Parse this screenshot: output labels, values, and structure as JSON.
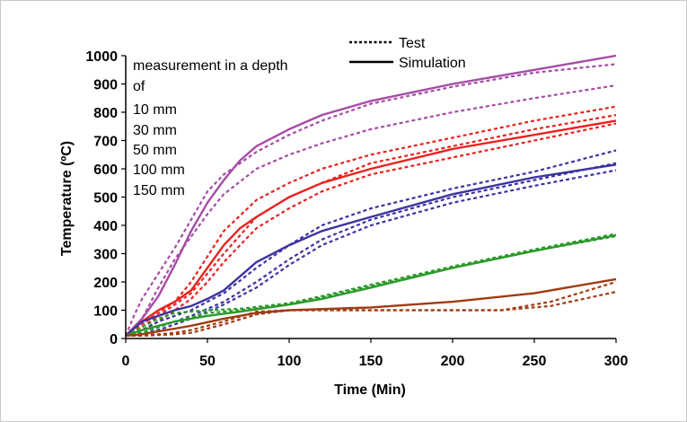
{
  "chart_data": {
    "type": "line",
    "xlabel": "Time (Min)",
    "ylabel": "Temperature (ºC)",
    "xlim": [
      0,
      300
    ],
    "ylim": [
      0,
      1000
    ],
    "xticks": [
      0,
      50,
      100,
      150,
      200,
      250,
      300
    ],
    "yticks": [
      0,
      100,
      200,
      300,
      400,
      500,
      600,
      700,
      800,
      900,
      1000
    ],
    "legend": {
      "placement": "top-center",
      "entries": [
        {
          "label": "Test",
          "style": "dotted"
        },
        {
          "label": "Simulation",
          "style": "solid"
        }
      ]
    },
    "annotation": {
      "lines": [
        "measurement in a depth",
        "of"
      ],
      "depths": [
        {
          "label": "10 mm",
          "color": "#a64ca6"
        },
        {
          "label": "30 mm",
          "color": "#e8231f"
        },
        {
          "label": "50 mm",
          "color": "#3d33a0"
        },
        {
          "label": "100 mm",
          "color": "#2a9a2a"
        },
        {
          "label": "150 mm",
          "color": "#a03c12"
        }
      ]
    },
    "series": [
      {
        "depth": "10 mm",
        "kind": "Simulation",
        "style": "solid",
        "color": "#a64ca6",
        "x": [
          0,
          10,
          20,
          30,
          40,
          50,
          60,
          70,
          80,
          100,
          120,
          150,
          200,
          250,
          300
        ],
        "y": [
          10,
          70,
          150,
          260,
          380,
          480,
          560,
          630,
          680,
          740,
          790,
          840,
          900,
          950,
          1000
        ]
      },
      {
        "depth": "10 mm",
        "kind": "Test",
        "style": "dotted",
        "color": "#a64ca6",
        "x": [
          0,
          5,
          10,
          20,
          30,
          40,
          50,
          60,
          80,
          100,
          120,
          150,
          200,
          250,
          300
        ],
        "y": [
          10,
          80,
          140,
          230,
          320,
          420,
          520,
          580,
          660,
          720,
          770,
          830,
          890,
          940,
          970
        ]
      },
      {
        "depth": "10 mm",
        "kind": "Test",
        "style": "dotted",
        "color": "#a64ca6",
        "x": [
          0,
          10,
          20,
          30,
          40,
          50,
          60,
          80,
          100,
          120,
          150,
          200,
          250,
          300
        ],
        "y": [
          10,
          70,
          180,
          280,
          360,
          440,
          510,
          600,
          650,
          690,
          740,
          800,
          850,
          895
        ]
      },
      {
        "depth": "30 mm",
        "kind": "Simulation",
        "style": "solid",
        "color": "#e8231f",
        "x": [
          0,
          10,
          20,
          30,
          40,
          50,
          60,
          70,
          80,
          100,
          120,
          150,
          200,
          250,
          300
        ],
        "y": [
          10,
          60,
          100,
          130,
          170,
          250,
          330,
          390,
          430,
          500,
          550,
          600,
          670,
          720,
          770
        ]
      },
      {
        "depth": "30 mm",
        "kind": "Test",
        "style": "dotted",
        "color": "#e8231f",
        "x": [
          0,
          10,
          20,
          30,
          40,
          50,
          60,
          80,
          100,
          120,
          150,
          200,
          250,
          300
        ],
        "y": [
          10,
          50,
          90,
          130,
          200,
          290,
          380,
          490,
          550,
          600,
          650,
          710,
          770,
          820
        ]
      },
      {
        "depth": "30 mm",
        "kind": "Test",
        "style": "dotted",
        "color": "#e8231f",
        "x": [
          0,
          10,
          20,
          30,
          40,
          50,
          60,
          80,
          100,
          120,
          150,
          200,
          250,
          300
        ],
        "y": [
          10,
          40,
          80,
          120,
          160,
          230,
          300,
          430,
          500,
          550,
          620,
          680,
          740,
          790
        ]
      },
      {
        "depth": "30 mm",
        "kind": "Test",
        "style": "dotted",
        "color": "#e8231f",
        "x": [
          0,
          10,
          20,
          30,
          40,
          50,
          60,
          80,
          100,
          120,
          150,
          200,
          250,
          300
        ],
        "y": [
          10,
          30,
          60,
          100,
          140,
          200,
          270,
          390,
          460,
          520,
          580,
          640,
          700,
          760
        ]
      },
      {
        "depth": "50 mm",
        "kind": "Simulation",
        "style": "solid",
        "color": "#3d33a0",
        "x": [
          0,
          10,
          20,
          30,
          40,
          50,
          60,
          70,
          80,
          100,
          120,
          150,
          200,
          250,
          300
        ],
        "y": [
          10,
          60,
          80,
          100,
          115,
          140,
          170,
          220,
          270,
          330,
          380,
          430,
          510,
          570,
          615
        ]
      },
      {
        "depth": "50 mm",
        "kind": "Test",
        "style": "dotted",
        "color": "#3d33a0",
        "x": [
          0,
          10,
          20,
          30,
          40,
          60,
          80,
          100,
          120,
          150,
          200,
          250,
          300
        ],
        "y": [
          10,
          30,
          60,
          80,
          100,
          160,
          250,
          330,
          400,
          460,
          530,
          590,
          665
        ]
      },
      {
        "depth": "50 mm",
        "kind": "Test",
        "style": "dotted",
        "color": "#3d33a0",
        "x": [
          0,
          10,
          20,
          30,
          40,
          60,
          80,
          100,
          120,
          150,
          200,
          250,
          300
        ],
        "y": [
          10,
          20,
          40,
          60,
          80,
          130,
          200,
          280,
          350,
          420,
          500,
          560,
          620
        ]
      },
      {
        "depth": "50 mm",
        "kind": "Test",
        "style": "dotted",
        "color": "#3d33a0",
        "x": [
          0,
          10,
          20,
          30,
          40,
          60,
          80,
          100,
          120,
          150,
          200,
          250,
          300
        ],
        "y": [
          10,
          15,
          30,
          50,
          70,
          120,
          180,
          260,
          330,
          400,
          480,
          540,
          595
        ]
      },
      {
        "depth": "100 mm",
        "kind": "Simulation",
        "style": "solid",
        "color": "#2a9a2a",
        "x": [
          0,
          10,
          20,
          30,
          50,
          70,
          100,
          120,
          150,
          200,
          250,
          300
        ],
        "y": [
          10,
          30,
          45,
          60,
          80,
          95,
          120,
          140,
          180,
          250,
          310,
          365
        ]
      },
      {
        "depth": "100 mm",
        "kind": "Test",
        "style": "dotted",
        "color": "#2a9a2a",
        "x": [
          0,
          10,
          20,
          30,
          50,
          70,
          100,
          120,
          150,
          200,
          250,
          300
        ],
        "y": [
          10,
          40,
          70,
          90,
          100,
          105,
          125,
          150,
          190,
          255,
          315,
          370
        ]
      },
      {
        "depth": "100 mm",
        "kind": "Test",
        "style": "dotted",
        "color": "#2a9a2a",
        "x": [
          0,
          10,
          20,
          30,
          50,
          70,
          100,
          120,
          150,
          200,
          250,
          300
        ],
        "y": [
          10,
          20,
          40,
          60,
          90,
          100,
          120,
          145,
          185,
          250,
          310,
          362
        ]
      },
      {
        "depth": "150 mm",
        "kind": "Simulation",
        "style": "solid",
        "color": "#a03c12",
        "x": [
          0,
          10,
          20,
          30,
          40,
          60,
          80,
          100,
          150,
          200,
          250,
          300
        ],
        "y": [
          10,
          15,
          25,
          35,
          45,
          70,
          90,
          100,
          110,
          130,
          160,
          210
        ]
      },
      {
        "depth": "150 mm",
        "kind": "Test",
        "style": "dotted",
        "color": "#a03c12",
        "x": [
          0,
          10,
          20,
          30,
          40,
          60,
          80,
          100,
          150,
          200,
          230,
          260,
          300
        ],
        "y": [
          10,
          12,
          15,
          20,
          30,
          60,
          95,
          100,
          100,
          100,
          100,
          130,
          200
        ]
      },
      {
        "depth": "150 mm",
        "kind": "Test",
        "style": "dotted",
        "color": "#a03c12",
        "x": [
          0,
          10,
          20,
          30,
          40,
          60,
          80,
          100,
          150,
          200,
          230,
          260,
          300
        ],
        "y": [
          10,
          10,
          12,
          15,
          20,
          50,
          85,
          100,
          100,
          100,
          100,
          115,
          165
        ]
      }
    ]
  }
}
